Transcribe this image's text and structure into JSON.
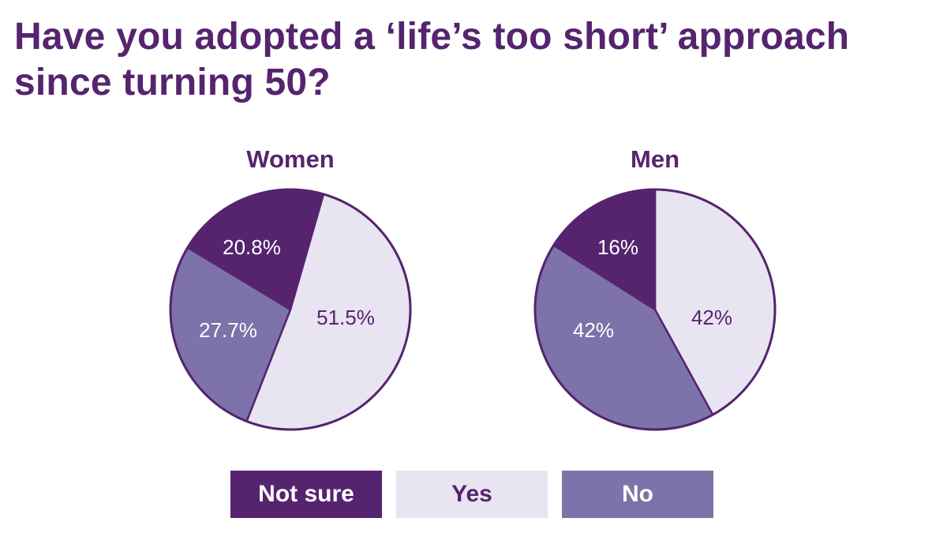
{
  "title": "Have you adopted a ‘life’s too short’ approach since turning 50?",
  "colors": {
    "not_sure": "#56246f",
    "yes": "#e8e4f1",
    "no": "#7e72aa",
    "outline": "#56246f",
    "title": "#56246f"
  },
  "legend": [
    {
      "key": "not_sure",
      "label": "Not sure"
    },
    {
      "key": "yes",
      "label": "Yes"
    },
    {
      "key": "no",
      "label": "No"
    }
  ],
  "chart_data": [
    {
      "type": "pie",
      "title": "Women",
      "slices": [
        {
          "key": "yes",
          "label": "Yes",
          "value": 51.5,
          "display": "51.5%"
        },
        {
          "key": "no",
          "label": "No",
          "value": 27.7,
          "display": "27.7%"
        },
        {
          "key": "not_sure",
          "label": "Not sure",
          "value": 20.8,
          "display": "20.8%"
        }
      ]
    },
    {
      "type": "pie",
      "title": "Men",
      "slices": [
        {
          "key": "yes",
          "label": "Yes",
          "value": 42,
          "display": "42%"
        },
        {
          "key": "no",
          "label": "No",
          "value": 42,
          "display": "42%"
        },
        {
          "key": "not_sure",
          "label": "Not sure",
          "value": 16,
          "display": "16%"
        }
      ]
    }
  ]
}
